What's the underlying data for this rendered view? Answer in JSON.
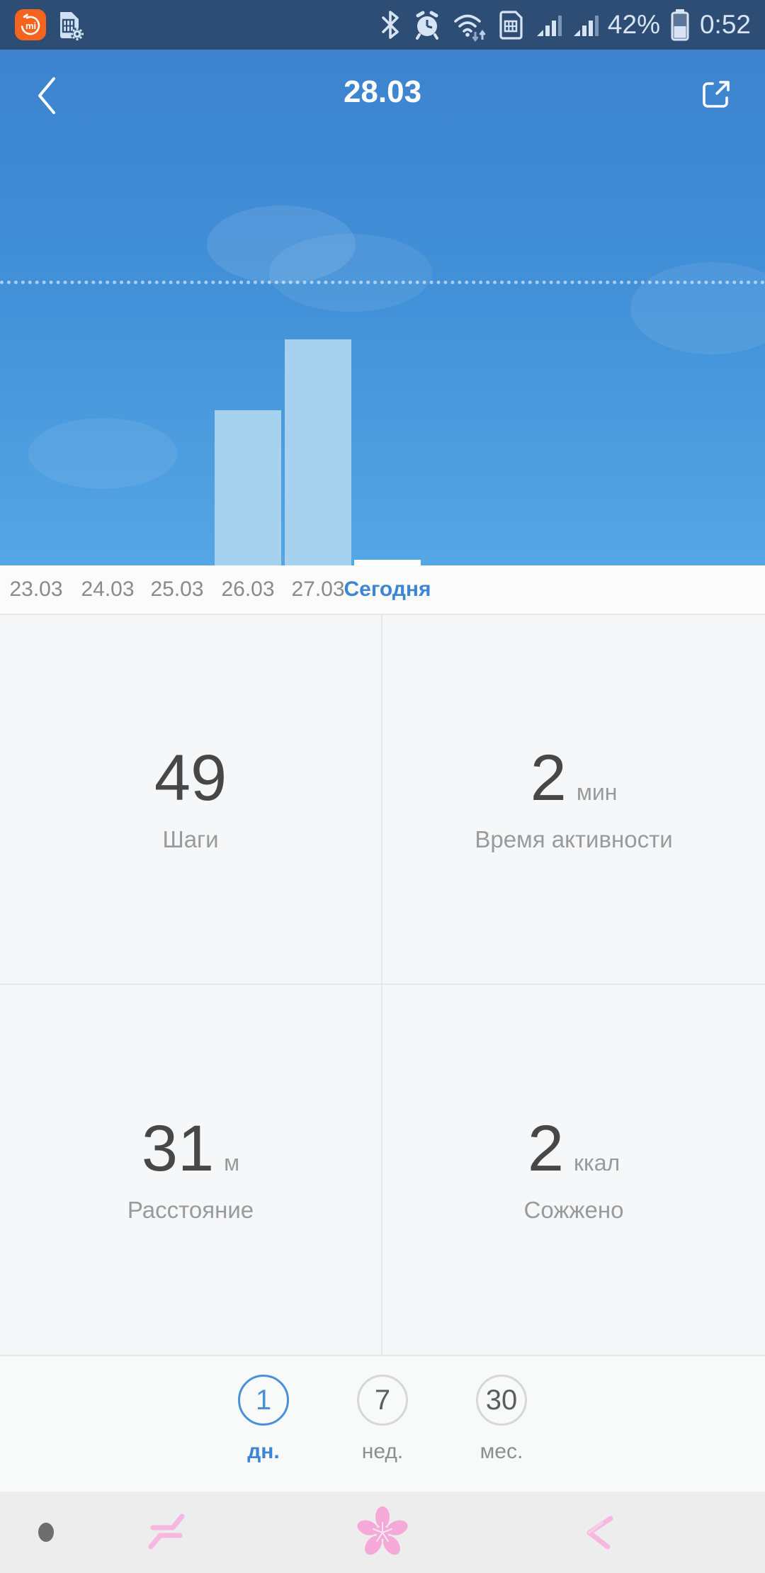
{
  "status_bar": {
    "battery_percent": "42%",
    "time": "0:52",
    "left_icons": [
      "mi-fit-app-icon",
      "sim-toolkit-icon"
    ],
    "right_icons": [
      "bluetooth-icon",
      "alarm-icon",
      "wifi-icon",
      "roaming-sim-icon",
      "signal-bars-icon",
      "signal-bars-icon",
      "battery-icon"
    ]
  },
  "header": {
    "title": "28.03",
    "back_icon": "back-chevron-icon",
    "share_icon": "share-icon"
  },
  "chart_data": {
    "type": "bar",
    "title": "",
    "categories": [
      "23.03",
      "24.03",
      "25.03",
      "26.03",
      "27.03",
      "Сегодня"
    ],
    "values_steps": [
      null,
      null,
      null,
      null,
      null,
      49
    ],
    "bar_height_fraction_of_goal": [
      0,
      0,
      0,
      0.55,
      0.8,
      0.02
    ],
    "goal_line": {
      "shown": true,
      "style": "dotted"
    },
    "selected_category": "Сегодня",
    "legend": "none",
    "note": "only today's numeric value (49 steps) is visible; other bar values estimated relative to the dotted goal line"
  },
  "stats": {
    "cells": [
      {
        "value": "49",
        "unit": "",
        "label": "Шаги"
      },
      {
        "value": "2",
        "unit": "мин",
        "label": "Время активности"
      },
      {
        "value": "31",
        "unit": "м",
        "label": "Расстояние"
      },
      {
        "value": "2",
        "unit": "ккал",
        "label": "Сожжено"
      }
    ]
  },
  "period": {
    "options": [
      {
        "number": "1",
        "label": "дн.",
        "selected": true
      },
      {
        "number": "7",
        "label": "нед.",
        "selected": false
      },
      {
        "number": "30",
        "label": "мес.",
        "selected": false
      }
    ]
  },
  "nav": {
    "icons": [
      "notification-dot",
      "recent-apps-pink-icon",
      "flower-home-pink-icon",
      "back-arrow-pink-icon"
    ]
  },
  "colors": {
    "status_bar_bg": "#2d4d75",
    "sky_top": "#3d83cf",
    "sky_bottom": "#55a6e4",
    "bar_fill": "#a6d2ef",
    "bar_today": "#ffffff",
    "accent_blue": "#3e86d2",
    "number_gray": "#474747",
    "label_gray": "#9a9a9a",
    "nav_pink": "#f4a9d9",
    "nav_bg": "#ededee"
  }
}
